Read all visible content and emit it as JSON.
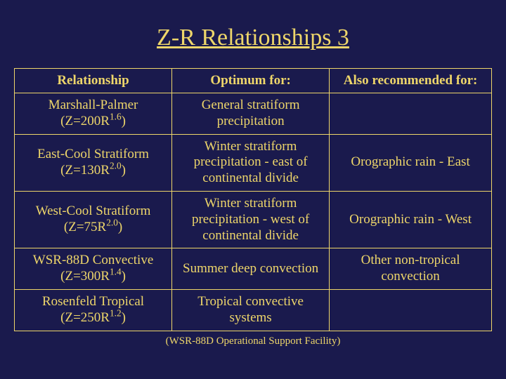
{
  "title": "Z-R Relationships 3",
  "headers": [
    "Relationship",
    "Optimum for:",
    "Also recommended for:"
  ],
  "rows": [
    {
      "name": "Marshall-Palmer",
      "formula_prefix": "(Z=200R",
      "formula_exp": "1.6",
      "formula_suffix": ")",
      "optimum": "General stratiform precipitation",
      "also": ""
    },
    {
      "name": "East-Cool Stratiform",
      "formula_prefix": "(Z=130R",
      "formula_exp": "2.0",
      "formula_suffix": ")",
      "optimum": "Winter stratiform precipitation - east of continental divide",
      "also": "Orographic rain - East"
    },
    {
      "name": "West-Cool Stratiform",
      "formula_prefix": "(Z=75R",
      "formula_exp": "2.0",
      "formula_suffix": ")",
      "optimum": "Winter stratiform precipitation - west of continental divide",
      "also": "Orographic rain - West"
    },
    {
      "name": "WSR-88D Convective",
      "formula_prefix": "(Z=300R",
      "formula_exp": "1.4",
      "formula_suffix": ")",
      "optimum": "Summer deep convection",
      "also": "Other non-tropical convection"
    },
    {
      "name": "Rosenfeld Tropical",
      "formula_prefix": "(Z=250R",
      "formula_exp": "1.2",
      "formula_suffix": ")",
      "optimum": "Tropical convective systems",
      "also": ""
    }
  ],
  "footnote": "(WSR-88D Operational Support Facility)",
  "colors": {
    "background": "#1a1a4d",
    "text": "#eed66a",
    "border": "#eed66a"
  }
}
